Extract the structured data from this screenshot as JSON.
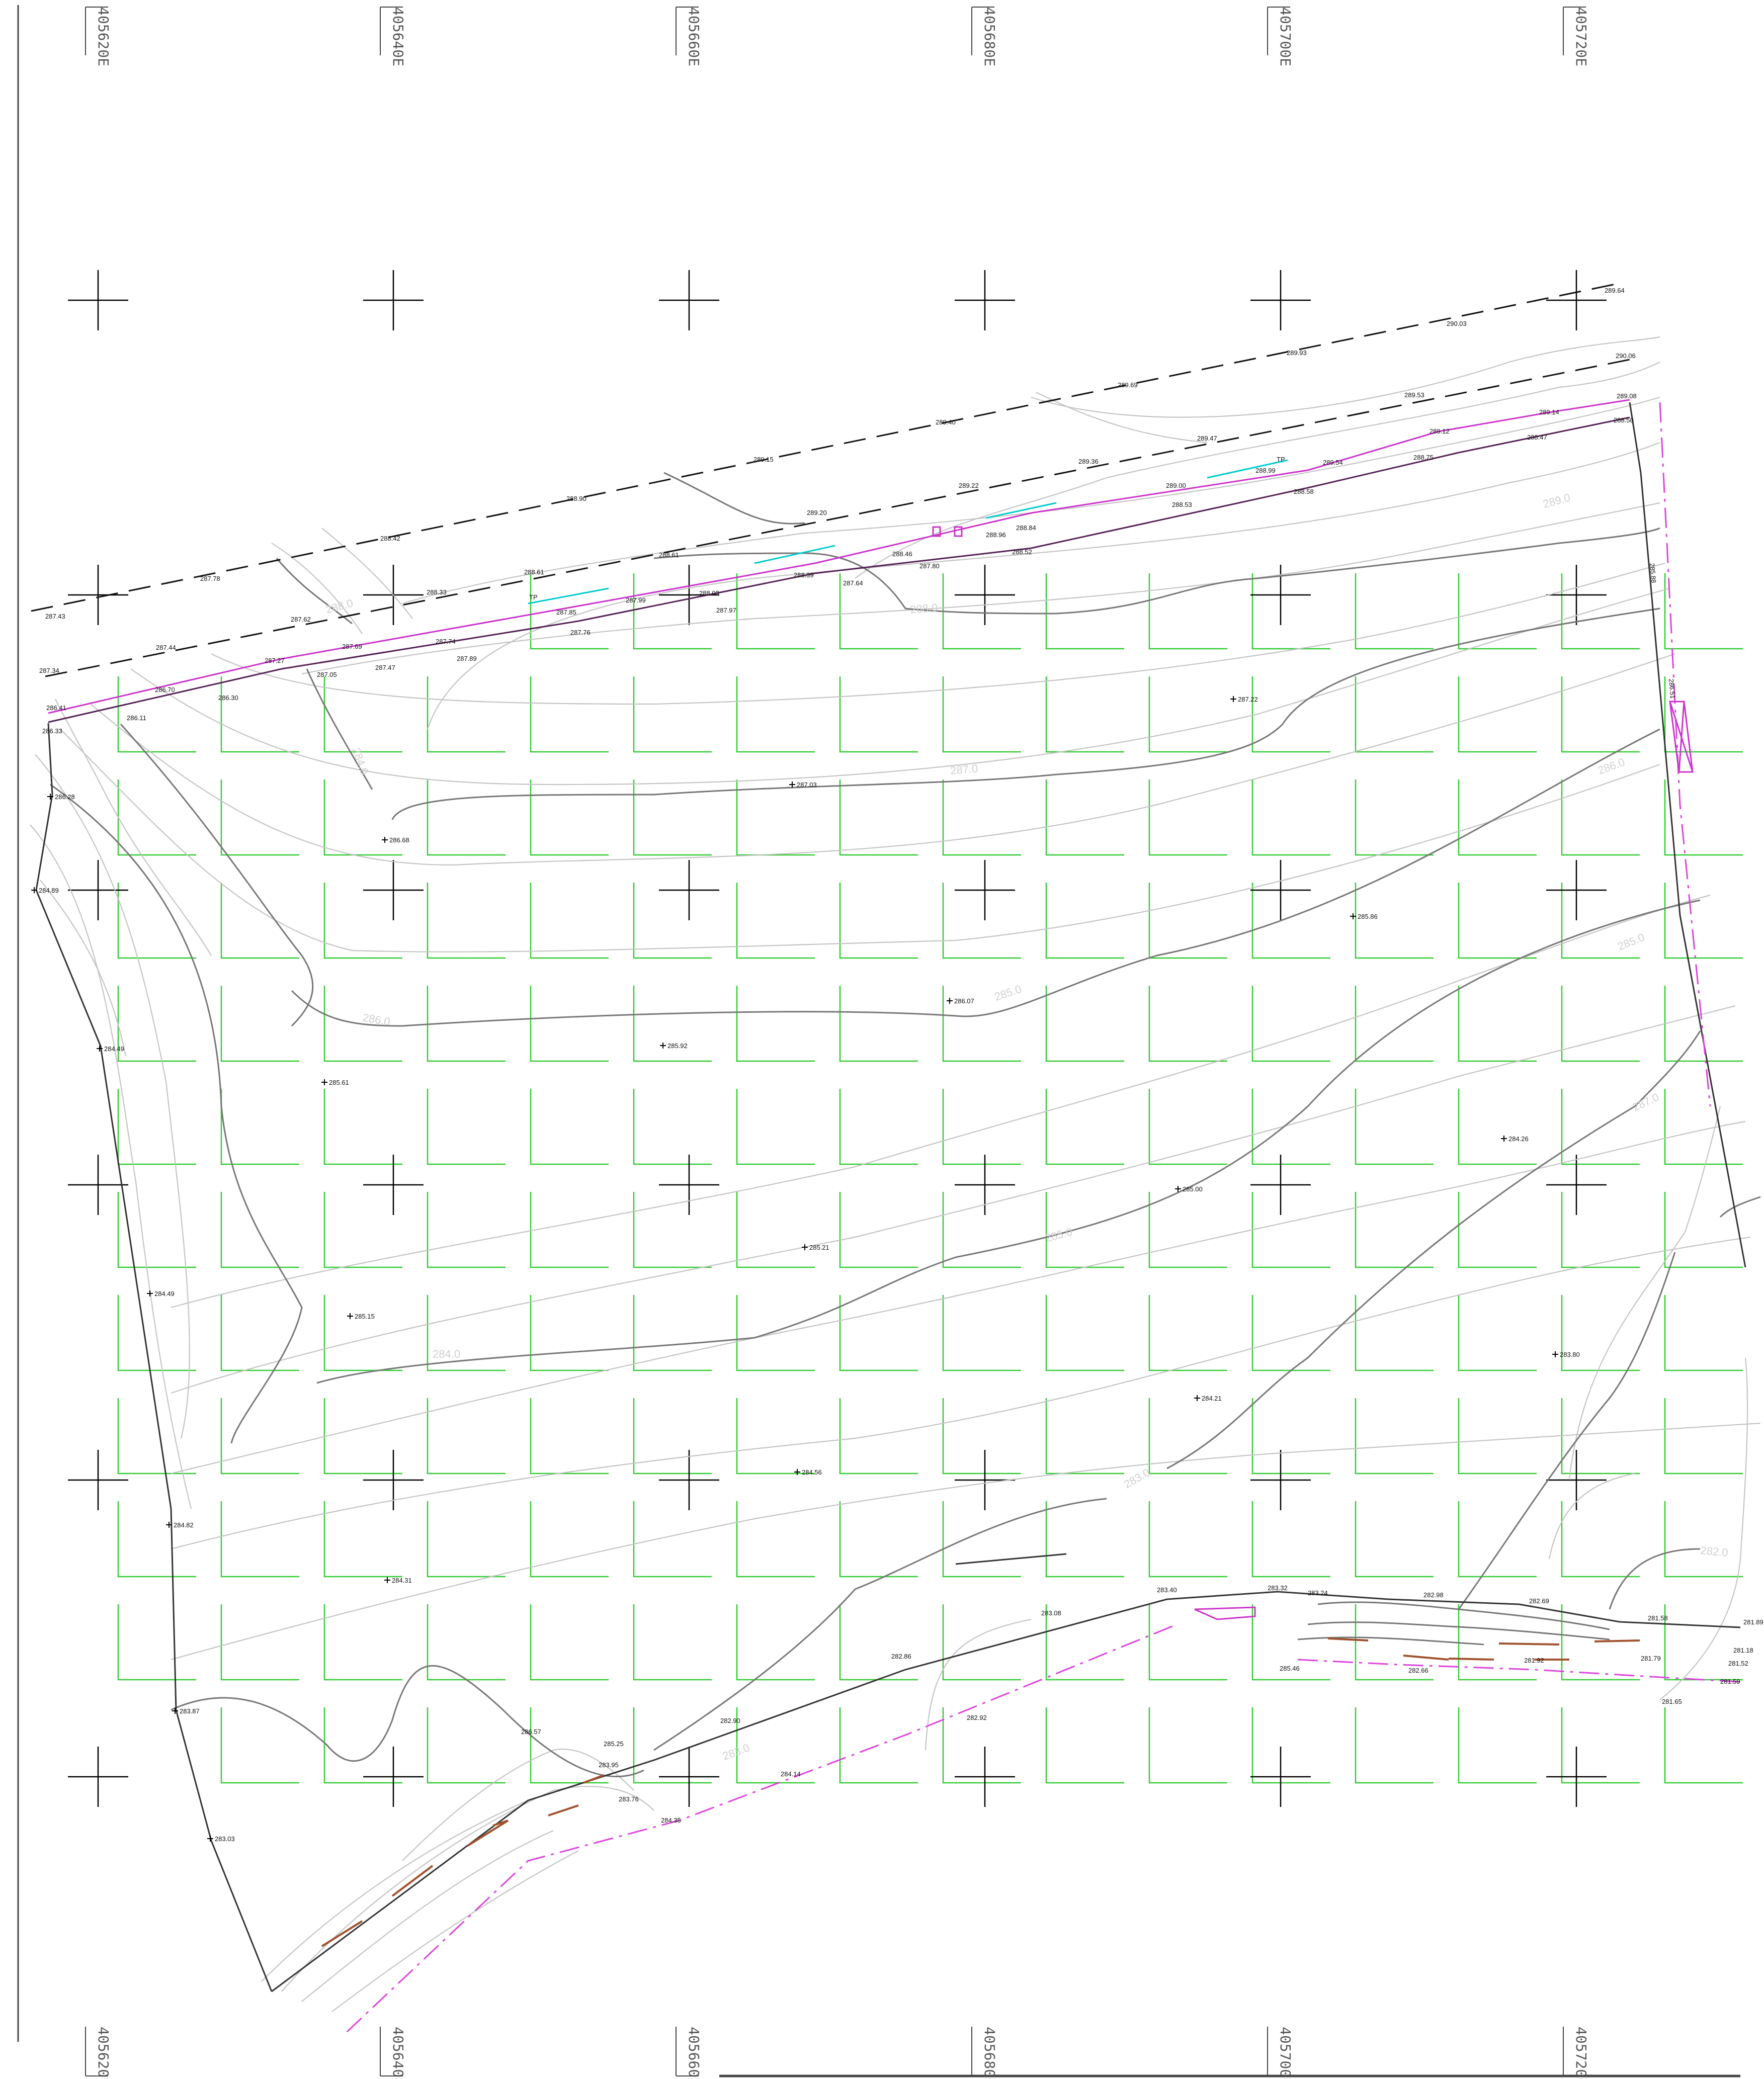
{
  "sheet": {
    "eastings": [
      "405620E",
      "405640E",
      "405660E",
      "405680E",
      "405700E",
      "405720E"
    ]
  },
  "legend": {
    "boundary": "boundary-line",
    "road_edge": "dashed-road-edge",
    "kerb": "kerb-line",
    "contour": "contour-line",
    "hatch": "parking-grid"
  },
  "colors": {
    "major_contour": "#666666",
    "minor_contour": "#c4c4c4",
    "kerb": "#cc33cc",
    "road_edge": "#111111",
    "boundary": "#333333",
    "grid": "#33cc33",
    "water": "#00cccc",
    "kerb_line": "#a0522d",
    "dash_dot": "#dd44dd",
    "cross": "#000000"
  },
  "spot_heights": [
    {
      "id": "s1",
      "label": "287.22"
    },
    {
      "id": "s2",
      "label": "287.03"
    },
    {
      "id": "s3",
      "label": "286.68"
    },
    {
      "id": "s4",
      "label": "285.86"
    },
    {
      "id": "s5",
      "label": "286.07"
    },
    {
      "id": "s6",
      "label": "285.92"
    },
    {
      "id": "s7",
      "label": "285.61"
    },
    {
      "id": "s8",
      "label": "284.26"
    },
    {
      "id": "s9",
      "label": "285.00"
    },
    {
      "id": "s10",
      "label": "285.21"
    },
    {
      "id": "s11",
      "label": "285.15"
    },
    {
      "id": "s12",
      "label": "283.80"
    },
    {
      "id": "s13",
      "label": "284.21"
    },
    {
      "id": "s14",
      "label": "284.56"
    },
    {
      "id": "s15",
      "label": "284.31"
    },
    {
      "id": "s16",
      "label": "286.28"
    },
    {
      "id": "s17",
      "label": "284.89"
    },
    {
      "id": "s18",
      "label": "284.49"
    },
    {
      "id": "s19",
      "label": "284.49"
    },
    {
      "id": "s20",
      "label": "284.82"
    },
    {
      "id": "s21",
      "label": "283.87"
    },
    {
      "id": "s22",
      "label": "283.03"
    }
  ],
  "road_labels": [
    {
      "id": "r1",
      "label": "287.43"
    },
    {
      "id": "r2",
      "label": "287.78"
    },
    {
      "id": "r3",
      "label": "288.42"
    },
    {
      "id": "r4",
      "label": "288.90"
    },
    {
      "id": "r5",
      "label": "289.15"
    },
    {
      "id": "r6",
      "label": "289.40"
    },
    {
      "id": "r7",
      "label": "289.69"
    },
    {
      "id": "r8",
      "label": "289.93"
    },
    {
      "id": "r9",
      "label": "290.03"
    },
    {
      "id": "r10",
      "label": "289.64"
    },
    {
      "id": "r11",
      "label": "287.34"
    },
    {
      "id": "r12",
      "label": "287.44"
    },
    {
      "id": "r13",
      "label": "287.62"
    },
    {
      "id": "r14",
      "label": "288.33"
    },
    {
      "id": "r15",
      "label": "288.61"
    },
    {
      "id": "r16",
      "label": "288.61"
    },
    {
      "id": "r17",
      "label": "289.20"
    },
    {
      "id": "r18",
      "label": "289.22"
    },
    {
      "id": "r19",
      "label": "289.36"
    },
    {
      "id": "r20",
      "label": "289.47"
    },
    {
      "id": "r21",
      "label": "289.53"
    },
    {
      "id": "r22",
      "label": "290.06"
    }
  ],
  "kerb_labels": [
    {
      "id": "k1",
      "label": "286.41"
    },
    {
      "id": "k2",
      "label": "286.70"
    },
    {
      "id": "k3",
      "label": "287.27"
    },
    {
      "id": "k4",
      "label": "287.69"
    },
    {
      "id": "k5",
      "label": "287.74"
    },
    {
      "id": "k6",
      "label": "287.85"
    },
    {
      "id": "k7",
      "label": "287.99"
    },
    {
      "id": "k8",
      "label": "288.03"
    },
    {
      "id": "k9",
      "label": "288.39"
    },
    {
      "id": "k10",
      "label": "288.46"
    },
    {
      "id": "k11",
      "label": "288.96"
    },
    {
      "id": "k12",
      "label": "288.84"
    },
    {
      "id": "k13",
      "label": "289.00"
    },
    {
      "id": "k14",
      "label": "288.99"
    },
    {
      "id": "k15",
      "label": "289.54"
    },
    {
      "id": "k16",
      "label": "289.12"
    },
    {
      "id": "k17",
      "label": "289.14"
    },
    {
      "id": "k18",
      "label": "289.08"
    },
    {
      "id": "k19",
      "label": "286.33"
    },
    {
      "id": "k20",
      "label": "286.11"
    },
    {
      "id": "k21",
      "label": "286.30"
    },
    {
      "id": "k22",
      "label": "287.05"
    },
    {
      "id": "k23",
      "label": "287.47"
    },
    {
      "id": "k24",
      "label": "287.89"
    },
    {
      "id": "k25",
      "label": "287.76"
    },
    {
      "id": "k26",
      "label": "287.97"
    },
    {
      "id": "k27",
      "label": "287.64"
    },
    {
      "id": "k28",
      "label": "287.80"
    },
    {
      "id": "k29",
      "label": "288.52"
    },
    {
      "id": "k30",
      "label": "288.53"
    },
    {
      "id": "k31",
      "label": "288.58"
    },
    {
      "id": "k32",
      "label": "288.75"
    },
    {
      "id": "k33",
      "label": "288.47"
    },
    {
      "id": "k34",
      "label": "288.50"
    }
  ],
  "contour_labels": [
    {
      "id": "c1",
      "label": "288.0"
    },
    {
      "id": "c2",
      "label": "287.0"
    },
    {
      "id": "c3",
      "label": "286.0"
    },
    {
      "id": "c4",
      "label": "285.0"
    },
    {
      "id": "c5",
      "label": "286.0"
    },
    {
      "id": "c6",
      "label": "285.0"
    },
    {
      "id": "c7",
      "label": "285.0"
    },
    {
      "id": "c8",
      "label": "284.0"
    },
    {
      "id": "c9",
      "label": "283.0"
    },
    {
      "id": "c10",
      "label": "282.0"
    },
    {
      "id": "c11",
      "label": "287.0"
    },
    {
      "id": "c12",
      "label": "288.0"
    },
    {
      "id": "c13",
      "label": "289.0"
    },
    {
      "id": "c14",
      "label": "284.0"
    },
    {
      "id": "c15",
      "label": "283.0"
    }
  ],
  "south_labels": [
    {
      "id": "b1",
      "label": "283.40"
    },
    {
      "id": "b2",
      "label": "283.32"
    },
    {
      "id": "b3",
      "label": "283.24"
    },
    {
      "id": "b4",
      "label": "282.98"
    },
    {
      "id": "b5",
      "label": "282.69"
    },
    {
      "id": "b6",
      "label": "281.58"
    },
    {
      "id": "b7",
      "label": "281.89"
    },
    {
      "id": "b8",
      "label": "283.08"
    },
    {
      "id": "b9",
      "label": "282.86"
    },
    {
      "id": "b10",
      "label": "282.90"
    },
    {
      "id": "b11",
      "label": "282.92"
    },
    {
      "id": "b12",
      "label": "284.14"
    },
    {
      "id": "b13",
      "label": "284.35"
    },
    {
      "id": "b14",
      "label": "283.95"
    },
    {
      "id": "b15",
      "label": "283.76"
    },
    {
      "id": "b16",
      "label": "282.66"
    },
    {
      "id": "b17",
      "label": "281.92"
    },
    {
      "id": "b18",
      "label": "281.79"
    },
    {
      "id": "b19",
      "label": "281.65"
    },
    {
      "id": "b20",
      "label": "281.18"
    },
    {
      "id": "b21",
      "label": "281.52"
    },
    {
      "id": "b22",
      "label": "281.59"
    },
    {
      "id": "b23",
      "label": "286.57"
    },
    {
      "id": "b24",
      "label": "285.25"
    },
    {
      "id": "b25",
      "label": "285.46"
    }
  ],
  "misc_labels": [
    {
      "id": "m1",
      "label": "TP"
    },
    {
      "id": "m2",
      "label": "TP"
    },
    {
      "id": "m3",
      "label": "285.88"
    },
    {
      "id": "m4",
      "label": "286.51"
    }
  ]
}
